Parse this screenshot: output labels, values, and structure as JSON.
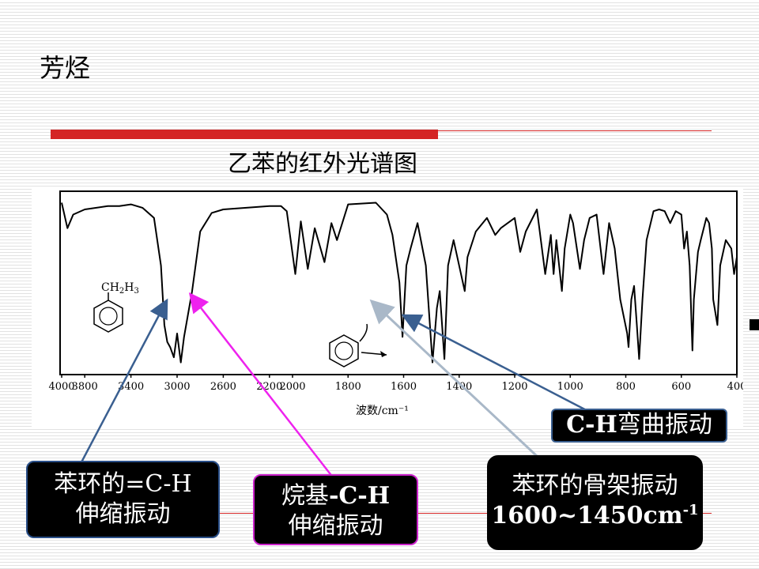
{
  "slide": {
    "title": "芳烃",
    "chart_title": "乙苯的红外光谱图"
  },
  "molecule": {
    "substituent_main": "CH",
    "sub2": "2",
    "h": "H",
    "sub3": "3"
  },
  "labels": {
    "aromatic_ch_line1": "苯环的=C-H",
    "aromatic_ch_line2": "伸缩振动",
    "alkyl_ch_line1a": "烷基",
    "alkyl_ch_line1b": "-C-H",
    "alkyl_ch_line2": "伸缩振动",
    "skeletal_line1": "苯环的骨架振动",
    "skeletal_line2": "1600~1450cm",
    "skeletal_sup": "-1",
    "bend_a": "C-H",
    "bend_b": "弯曲振动"
  },
  "colors": {
    "accent_red": "#d42424",
    "arrow_blue": "#3a5f90",
    "arrow_magenta": "#ee22ee",
    "arrow_grey": "#a9b8c8"
  },
  "chart_data": {
    "type": "line",
    "title": "乙苯的红外光谱图",
    "xlabel": "波数/cm⁻¹",
    "ylabel": "",
    "x_tick_labels": [
      "4000",
      "3800",
      "3400",
      "3000",
      "2600",
      "2200",
      "2000",
      "1800",
      "1600",
      "1400",
      "1200",
      "1000",
      "800",
      "600",
      "400"
    ],
    "x_order": "decreasing",
    "y_axis": "transmittance (peaks point downward), unlabeled",
    "ylim": [
      0,
      100
    ],
    "series": [
      {
        "name": "",
        "points": [
          [
            4000,
            97
          ],
          [
            3950,
            82
          ],
          [
            3900,
            90
          ],
          [
            3800,
            93
          ],
          [
            3600,
            95
          ],
          [
            3500,
            95
          ],
          [
            3400,
            96
          ],
          [
            3300,
            94
          ],
          [
            3200,
            88
          ],
          [
            3140,
            60
          ],
          [
            3110,
            25
          ],
          [
            3085,
            15
          ],
          [
            3060,
            12
          ],
          [
            3028,
            6
          ],
          [
            3000,
            20
          ],
          [
            2968,
            3
          ],
          [
            2940,
            18
          ],
          [
            2870,
            45
          ],
          [
            2800,
            80
          ],
          [
            2700,
            91
          ],
          [
            2600,
            93
          ],
          [
            2400,
            94
          ],
          [
            2200,
            95
          ],
          [
            2100,
            95
          ],
          [
            2050,
            92
          ],
          [
            1990,
            55
          ],
          [
            1970,
            86
          ],
          [
            1945,
            58
          ],
          [
            1920,
            82
          ],
          [
            1885,
            62
          ],
          [
            1860,
            85
          ],
          [
            1840,
            75
          ],
          [
            1800,
            96
          ],
          [
            1700,
            97
          ],
          [
            1660,
            90
          ],
          [
            1640,
            78
          ],
          [
            1615,
            50
          ],
          [
            1604,
            18
          ],
          [
            1590,
            60
          ],
          [
            1575,
            70
          ],
          [
            1550,
            85
          ],
          [
            1520,
            60
          ],
          [
            1496,
            3
          ],
          [
            1480,
            35
          ],
          [
            1470,
            45
          ],
          [
            1453,
            5
          ],
          [
            1440,
            60
          ],
          [
            1420,
            75
          ],
          [
            1380,
            45
          ],
          [
            1370,
            65
          ],
          [
            1340,
            80
          ],
          [
            1300,
            88
          ],
          [
            1270,
            78
          ],
          [
            1250,
            82
          ],
          [
            1200,
            88
          ],
          [
            1180,
            68
          ],
          [
            1160,
            80
          ],
          [
            1120,
            93
          ],
          [
            1090,
            55
          ],
          [
            1070,
            78
          ],
          [
            1060,
            55
          ],
          [
            1050,
            75
          ],
          [
            1030,
            45
          ],
          [
            1020,
            70
          ],
          [
            1000,
            90
          ],
          [
            990,
            85
          ],
          [
            965,
            58
          ],
          [
            950,
            75
          ],
          [
            930,
            88
          ],
          [
            905,
            90
          ],
          [
            880,
            55
          ],
          [
            860,
            85
          ],
          [
            840,
            70
          ],
          [
            820,
            40
          ],
          [
            795,
            20
          ],
          [
            790,
            12
          ],
          [
            780,
            40
          ],
          [
            770,
            48
          ],
          [
            760,
            25
          ],
          [
            752,
            5
          ],
          [
            740,
            40
          ],
          [
            725,
            75
          ],
          [
            700,
            92
          ],
          [
            680,
            93
          ],
          [
            660,
            92
          ],
          [
            640,
            85
          ],
          [
            620,
            92
          ],
          [
            600,
            90
          ],
          [
            590,
            70
          ],
          [
            580,
            80
          ],
          [
            570,
            60
          ],
          [
            560,
            10
          ],
          [
            555,
            40
          ],
          [
            540,
            68
          ],
          [
            530,
            75
          ],
          [
            510,
            88
          ],
          [
            500,
            85
          ],
          [
            490,
            70
          ],
          [
            485,
            40
          ],
          [
            470,
            25
          ],
          [
            460,
            60
          ],
          [
            440,
            75
          ],
          [
            420,
            70
          ],
          [
            410,
            55
          ],
          [
            400,
            65
          ]
        ]
      }
    ],
    "annotations": [
      {
        "text": "苯环的=C-H 伸缩振动",
        "target_x": 3030
      },
      {
        "text": "烷基-C-H 伸缩振动",
        "target_x": 2968
      },
      {
        "text": "苯环的骨架振动 1600~1450cm-1",
        "target_x": 1604
      },
      {
        "text": "C-H弯曲振动",
        "target_x": 1453
      }
    ],
    "grid": false
  }
}
